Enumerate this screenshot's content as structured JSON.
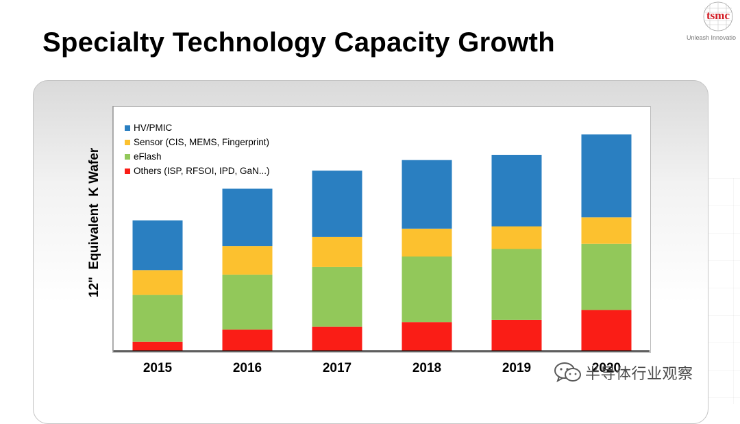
{
  "slide": {
    "title": "Specialty Technology Capacity Growth",
    "logo_text": "tsmc",
    "tagline": "Unleash Innovatio"
  },
  "watermark": {
    "text": "半导体行业观察",
    "icon": "wechat-icon"
  },
  "colors": {
    "hv_pmic": "#2a7fc1",
    "sensor": "#fcc12f",
    "eflash": "#92c85a",
    "others": "#fa1d16"
  },
  "chart_data": {
    "type": "bar",
    "stacked": true,
    "title": "",
    "xlabel": "",
    "ylabel": "12\"  Equivalent  K Wafer",
    "categories": [
      "2015",
      "2016",
      "2017",
      "2018",
      "2019",
      "2020"
    ],
    "ylim": [
      0,
      320
    ],
    "grid": false,
    "legend_position": "top-left",
    "series": [
      {
        "name": "Others (ISP, RFSOI, IPD, GaN...)",
        "color": "#fa1d16",
        "values": [
          12,
          28,
          32,
          38,
          41,
          54
        ]
      },
      {
        "name": "eFlash",
        "color": "#92c85a",
        "values": [
          62,
          73,
          79,
          87,
          94,
          88
        ]
      },
      {
        "name": "Sensor (CIS, MEMS, Fingerprint)",
        "color": "#fcc12f",
        "values": [
          33,
          38,
          40,
          37,
          30,
          35
        ]
      },
      {
        "name": "HV/PMIC",
        "color": "#2a7fc1",
        "values": [
          66,
          76,
          88,
          91,
          95,
          110
        ]
      }
    ],
    "legend_order": [
      "HV/PMIC",
      "Sensor (CIS, MEMS, Fingerprint)",
      "eFlash",
      "Others (ISP, RFSOI, IPD, GaN...)"
    ]
  }
}
